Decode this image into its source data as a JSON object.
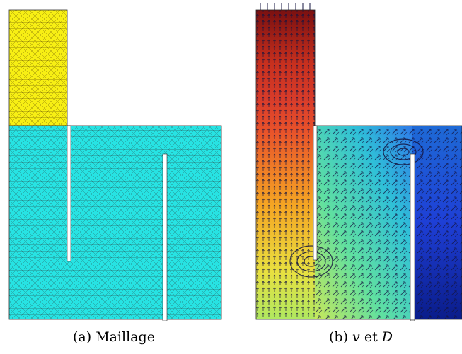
{
  "figures": [
    {
      "caption_tag": "(a)",
      "caption_text": "Maillage",
      "colors": {
        "upper_region": "#f7ef14",
        "lower_region": "#27e3e3",
        "mesh_line": "#2a8a8a",
        "gap": "#ffffff"
      }
    },
    {
      "caption_tag": "(b)",
      "caption_var1": "v",
      "caption_mid": "et",
      "caption_var2": "D",
      "colors": {
        "gradient": [
          "#7a1010",
          "#c8301e",
          "#f06b1e",
          "#f5c623",
          "#c8e85a",
          "#55e1b0",
          "#2fa6e8",
          "#1e3fd6",
          "#0a1c8a"
        ],
        "arrow": "#141440"
      }
    }
  ]
}
